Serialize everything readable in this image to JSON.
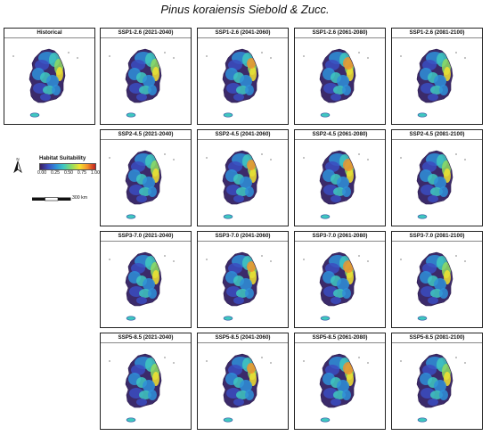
{
  "title": "Pinus koraiensis Siebold & Zucc.",
  "historical_label": "Historical",
  "panels": [
    {
      "label": "SSP1-2.6 (2021-2040)"
    },
    {
      "label": "SSP1-2.6 (2041-2060)"
    },
    {
      "label": "SSP1-2.6 (2061-2080)"
    },
    {
      "label": "SSP1-2.6 (2081-2100)"
    },
    {
      "label": "SSP2-4.5 (2021-2040)"
    },
    {
      "label": "SSP2-4.5 (2041-2060)"
    },
    {
      "label": "SSP2-4.5 (2061-2080)"
    },
    {
      "label": "SSP2-4.5 (2081-2100)"
    },
    {
      "label": "SSP3-7.0 (2021-2040)"
    },
    {
      "label": "SSP3-7.0 (2041-2060)"
    },
    {
      "label": "SSP3-7.0 (2061-2080)"
    },
    {
      "label": "SSP3-7.0 (2081-2100)"
    },
    {
      "label": "SSP5-8.5 (2021-2040)"
    },
    {
      "label": "SSP5-8.5 (2041-2060)"
    },
    {
      "label": "SSP5-8.5 (2061-2080)"
    },
    {
      "label": "SSP5-8.5 (2081-2100)"
    }
  ],
  "legend": {
    "title": "Habitat Suitability",
    "ticks": [
      "0.00",
      "0.25",
      "0.50",
      "0.75",
      "1.00"
    ],
    "colors": [
      "#3a1e5c",
      "#3b4cc0",
      "#2f8fd8",
      "#3fc8c0",
      "#8fdc62",
      "#f3e22f",
      "#f4902a",
      "#c02020"
    ]
  },
  "north_label": "N",
  "scale_label": "300 km"
}
